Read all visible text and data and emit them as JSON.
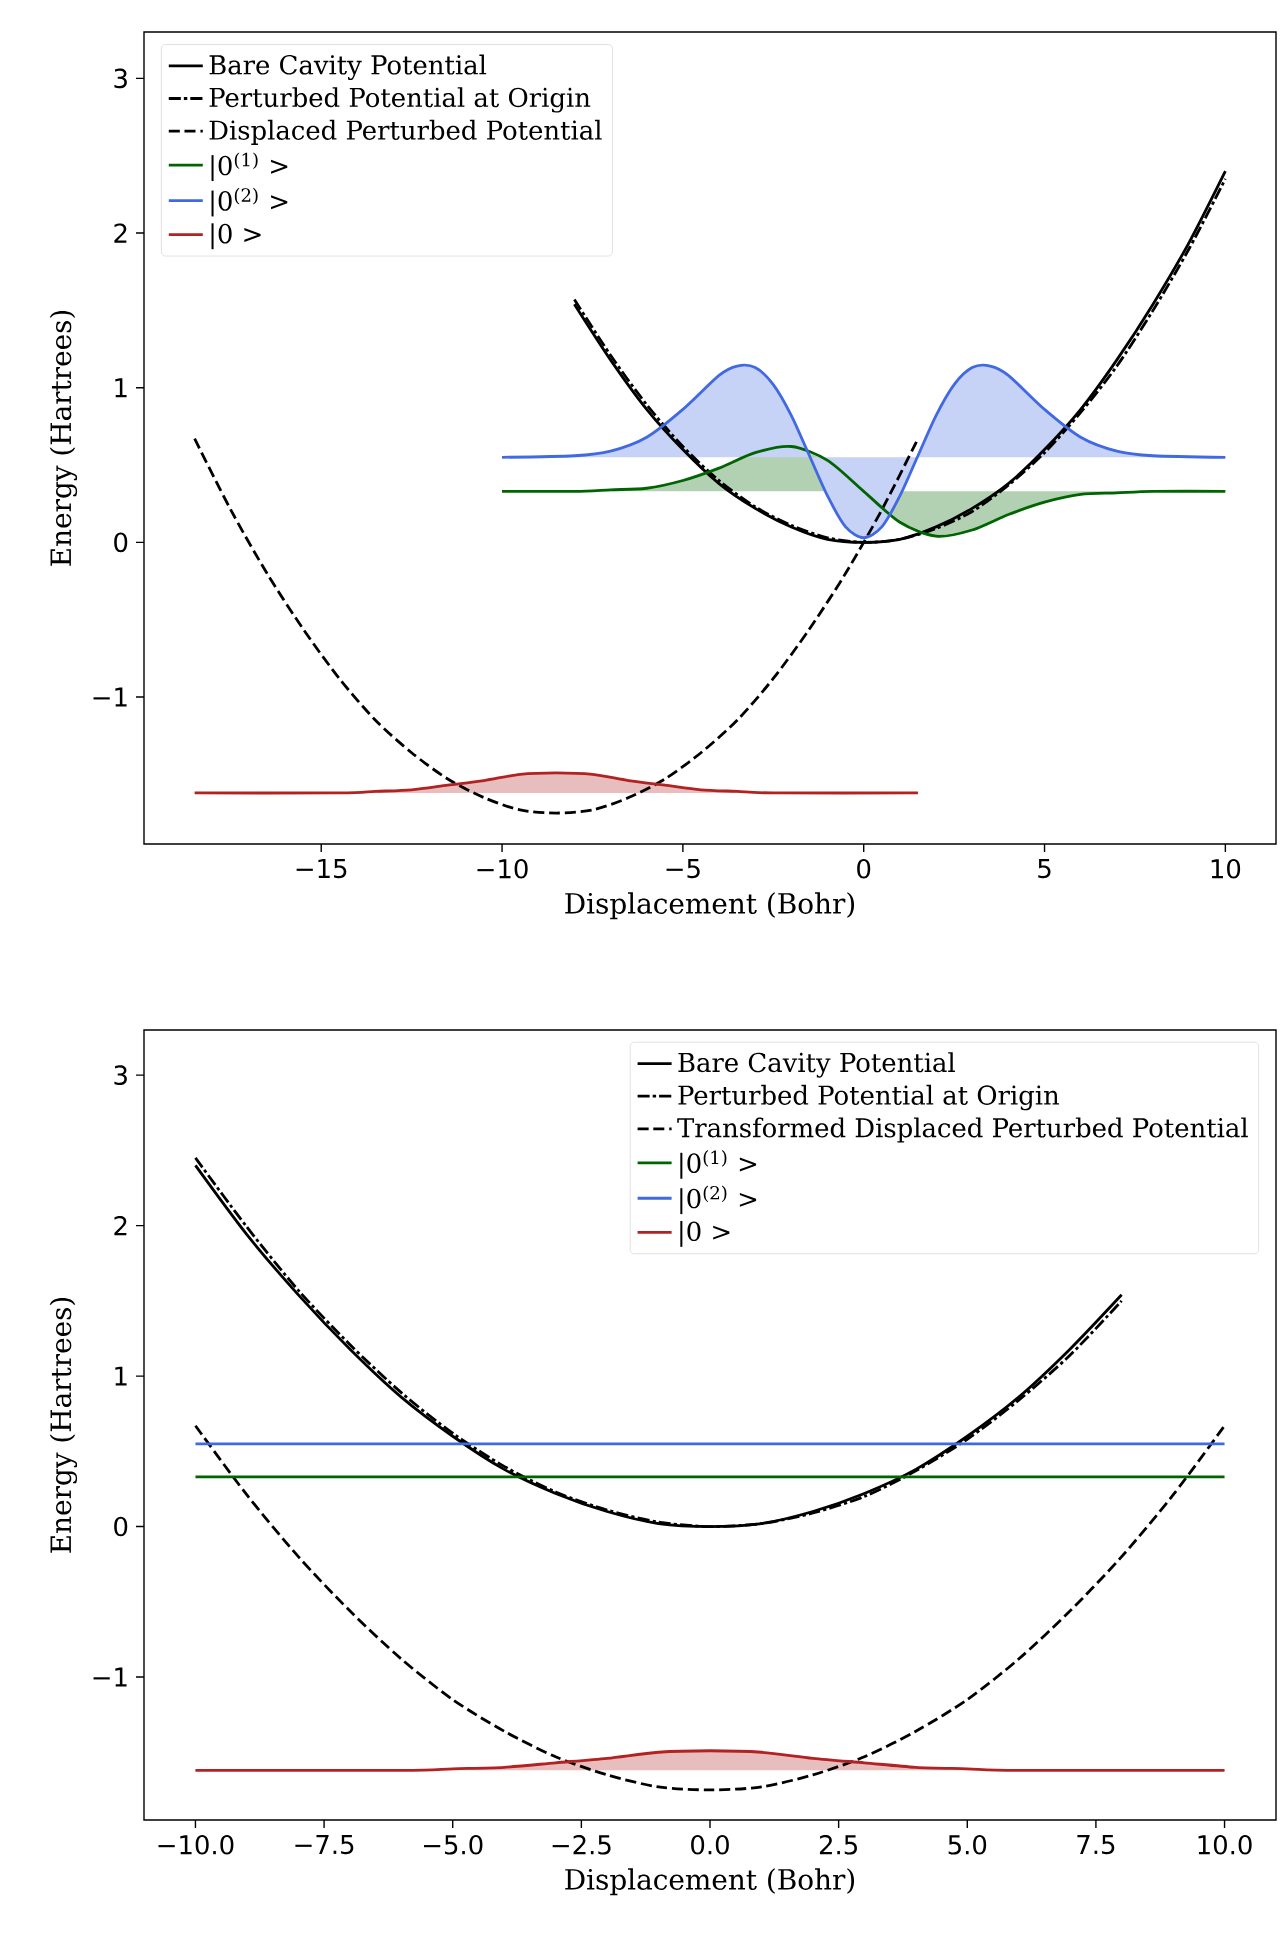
{
  "chart_data": [
    {
      "type": "line",
      "xlabel": "Displacement (Bohr)",
      "ylabel": "Energy (Hartrees)",
      "xlim": [
        -19.9,
        11.4
      ],
      "ylim": [
        -1.95,
        3.3
      ],
      "xticks": [
        {
          "value": -15,
          "label": "−15"
        },
        {
          "value": -10,
          "label": "−10"
        },
        {
          "value": -5,
          "label": "−5"
        },
        0,
        5,
        10
      ],
      "yticks": [
        {
          "value": -1,
          "label": "−1"
        },
        0,
        1,
        2,
        3
      ],
      "legend": "top left",
      "series": [
        {
          "name": "Bare Cavity Potential",
          "color": "#000000",
          "line_style": "solid",
          "x": [
            -8,
            -7,
            -6,
            -5,
            -4,
            -3,
            -2,
            -1,
            0,
            1,
            2,
            3,
            4,
            5,
            6,
            7,
            8,
            9,
            10
          ],
          "values": [
            1.54,
            1.18,
            0.86,
            0.6,
            0.38,
            0.22,
            0.1,
            0.02,
            0,
            0.02,
            0.1,
            0.22,
            0.38,
            0.6,
            0.86,
            1.18,
            1.54,
            1.94,
            2.4
          ]
        },
        {
          "name": "Perturbed Potential at Origin",
          "color": "#000000",
          "line_style": "dashdot",
          "x": [
            -8,
            -7,
            -6,
            -5,
            -4,
            -3,
            -2,
            -1,
            0,
            1,
            2,
            3,
            4,
            5,
            6,
            7,
            8,
            9,
            10
          ],
          "values": [
            1.57,
            1.21,
            0.89,
            0.62,
            0.4,
            0.23,
            0.11,
            0.03,
            0,
            0.02,
            0.09,
            0.2,
            0.37,
            0.58,
            0.84,
            1.14,
            1.5,
            1.9,
            2.35
          ]
        },
        {
          "name": "Displaced Perturbed Potential",
          "color": "#000000",
          "line_style": "dashed",
          "x": [
            -18.5,
            -17.5,
            -16.5,
            -15.5,
            -14.5,
            -13.5,
            -12.5,
            -11.5,
            -10.5,
            -9.5,
            -8.5,
            -7.5,
            -6.5,
            -5.5,
            -4.5,
            -3.5,
            -2.5,
            -1.5,
            -0.5,
            0.5,
            1.5
          ],
          "values": [
            0.67,
            0.21,
            -0.2,
            -0.56,
            -0.88,
            -1.15,
            -1.36,
            -1.53,
            -1.65,
            -1.73,
            -1.75,
            -1.73,
            -1.65,
            -1.53,
            -1.36,
            -1.15,
            -0.88,
            -0.56,
            -0.2,
            0.21,
            0.67
          ]
        },
        {
          "name": "|0$^{(1)}$ >",
          "type": "area",
          "color": "#006400",
          "line_style": "solid",
          "x": [
            -10,
            -8,
            -7,
            -6,
            -5,
            -4,
            -3,
            -2,
            -1,
            0,
            1,
            2,
            3,
            4,
            5,
            6,
            7,
            8,
            10
          ],
          "values": [
            0.33,
            0.33,
            0.34,
            0.35,
            0.4,
            0.48,
            0.58,
            0.62,
            0.53,
            0.33,
            0.13,
            0.04,
            0.08,
            0.18,
            0.26,
            0.31,
            0.32,
            0.33,
            0.33
          ]
        },
        {
          "name": "|0$^{(2)}$ >",
          "type": "area",
          "color": "#4169e1",
          "line_style": "solid",
          "x": [
            -10,
            -8,
            -7,
            -6,
            -5,
            -4,
            -3.5,
            -3,
            -2.5,
            -2,
            -1.5,
            -1,
            -0.5,
            0,
            0.5,
            1,
            1.5,
            2,
            2.5,
            3,
            3.5,
            4,
            5,
            6,
            7,
            8,
            10
          ],
          "values": [
            0.55,
            0.56,
            0.59,
            0.68,
            0.86,
            1.08,
            1.14,
            1.13,
            1.02,
            0.82,
            0.56,
            0.3,
            0.1,
            0.03,
            0.1,
            0.3,
            0.56,
            0.82,
            1.02,
            1.13,
            1.14,
            1.08,
            0.86,
            0.68,
            0.59,
            0.56,
            0.55
          ]
        },
        {
          "name": "|0 >",
          "type": "area",
          "color": "#b22222",
          "line_style": "solid",
          "x": [
            -18.5,
            -14.5,
            -13.5,
            -12.5,
            -11.5,
            -10.5,
            -9.5,
            -8.5,
            -7.5,
            -6.5,
            -5.5,
            -4.5,
            -3.5,
            -2.5,
            1.5
          ],
          "values": [
            -1.62,
            -1.62,
            -1.61,
            -1.6,
            -1.57,
            -1.54,
            -1.5,
            -1.49,
            -1.5,
            -1.54,
            -1.57,
            -1.6,
            -1.61,
            -1.62,
            -1.62
          ]
        }
      ]
    },
    {
      "type": "line",
      "xlabel": "Displacement (Bohr)",
      "ylabel": "Energy (Hartrees)",
      "xlim": [
        -11,
        11
      ],
      "ylim": [
        -1.95,
        3.3
      ],
      "xticks": [
        {
          "value": -10,
          "label": "−10.0"
        },
        {
          "value": -7.5,
          "label": "−7.5"
        },
        {
          "value": -5,
          "label": "−5.0"
        },
        {
          "value": -2.5,
          "label": "−2.5"
        },
        {
          "value": 0,
          "label": "0.0"
        },
        {
          "value": 2.5,
          "label": "2.5"
        },
        {
          "value": 5,
          "label": "5.0"
        },
        {
          "value": 7.5,
          "label": "7.5"
        },
        {
          "value": 10,
          "label": "10.0"
        }
      ],
      "yticks": [
        {
          "value": -1,
          "label": "−1"
        },
        0,
        1,
        2,
        3
      ],
      "legend": "top right",
      "series": [
        {
          "name": "Bare Cavity Potential",
          "color": "#000000",
          "line_style": "solid",
          "x": [
            -10,
            -9,
            -8,
            -7,
            -6,
            -5,
            -4,
            -3,
            -2,
            -1,
            0,
            1,
            2,
            3,
            4,
            5,
            6,
            7,
            8
          ],
          "values": [
            2.4,
            1.94,
            1.54,
            1.18,
            0.86,
            0.6,
            0.38,
            0.22,
            0.1,
            0.02,
            0,
            0.02,
            0.1,
            0.22,
            0.38,
            0.6,
            0.86,
            1.18,
            1.54
          ]
        },
        {
          "name": "Perturbed Potential at Origin",
          "color": "#000000",
          "line_style": "dashdot",
          "x": [
            -10,
            -9,
            -8,
            -7,
            -6,
            -5,
            -4,
            -3,
            -2,
            -1,
            0,
            1,
            2,
            3,
            4,
            5,
            6,
            7,
            8
          ],
          "values": [
            2.45,
            1.99,
            1.57,
            1.21,
            0.89,
            0.62,
            0.4,
            0.23,
            0.11,
            0.03,
            0,
            0.02,
            0.09,
            0.2,
            0.37,
            0.58,
            0.84,
            1.14,
            1.5
          ]
        },
        {
          "name": "Transformed Displaced Perturbed Potential",
          "color": "#000000",
          "line_style": "dashed",
          "x": [
            -10,
            -9,
            -8,
            -7,
            -6,
            -5,
            -4,
            -3,
            -2,
            -1,
            0,
            1,
            2,
            3,
            4,
            5,
            6,
            7,
            8,
            9,
            10
          ],
          "values": [
            0.67,
            0.21,
            -0.2,
            -0.56,
            -0.88,
            -1.15,
            -1.36,
            -1.53,
            -1.65,
            -1.73,
            -1.75,
            -1.73,
            -1.65,
            -1.53,
            -1.36,
            -1.15,
            -0.88,
            -0.56,
            -0.2,
            0.21,
            0.67
          ]
        },
        {
          "name": "|0$^{(1)}$ >",
          "color": "#006400",
          "line_style": "solid",
          "x": [
            -10,
            10
          ],
          "values": [
            0.33,
            0.33
          ]
        },
        {
          "name": "|0$^{(2)}$ >",
          "color": "#4169e1",
          "line_style": "solid",
          "x": [
            -10,
            10
          ],
          "values": [
            0.55,
            0.55
          ]
        },
        {
          "name": "|0 >",
          "type": "area",
          "color": "#b22222",
          "line_style": "solid",
          "x": [
            -10,
            -6,
            -5,
            -4,
            -3,
            -2,
            -1,
            0,
            1,
            2,
            3,
            4,
            5,
            6,
            10
          ],
          "values": [
            -1.62,
            -1.62,
            -1.61,
            -1.6,
            -1.57,
            -1.54,
            -1.5,
            -1.49,
            -1.5,
            -1.54,
            -1.57,
            -1.6,
            -1.61,
            -1.62,
            -1.62
          ]
        }
      ]
    }
  ]
}
